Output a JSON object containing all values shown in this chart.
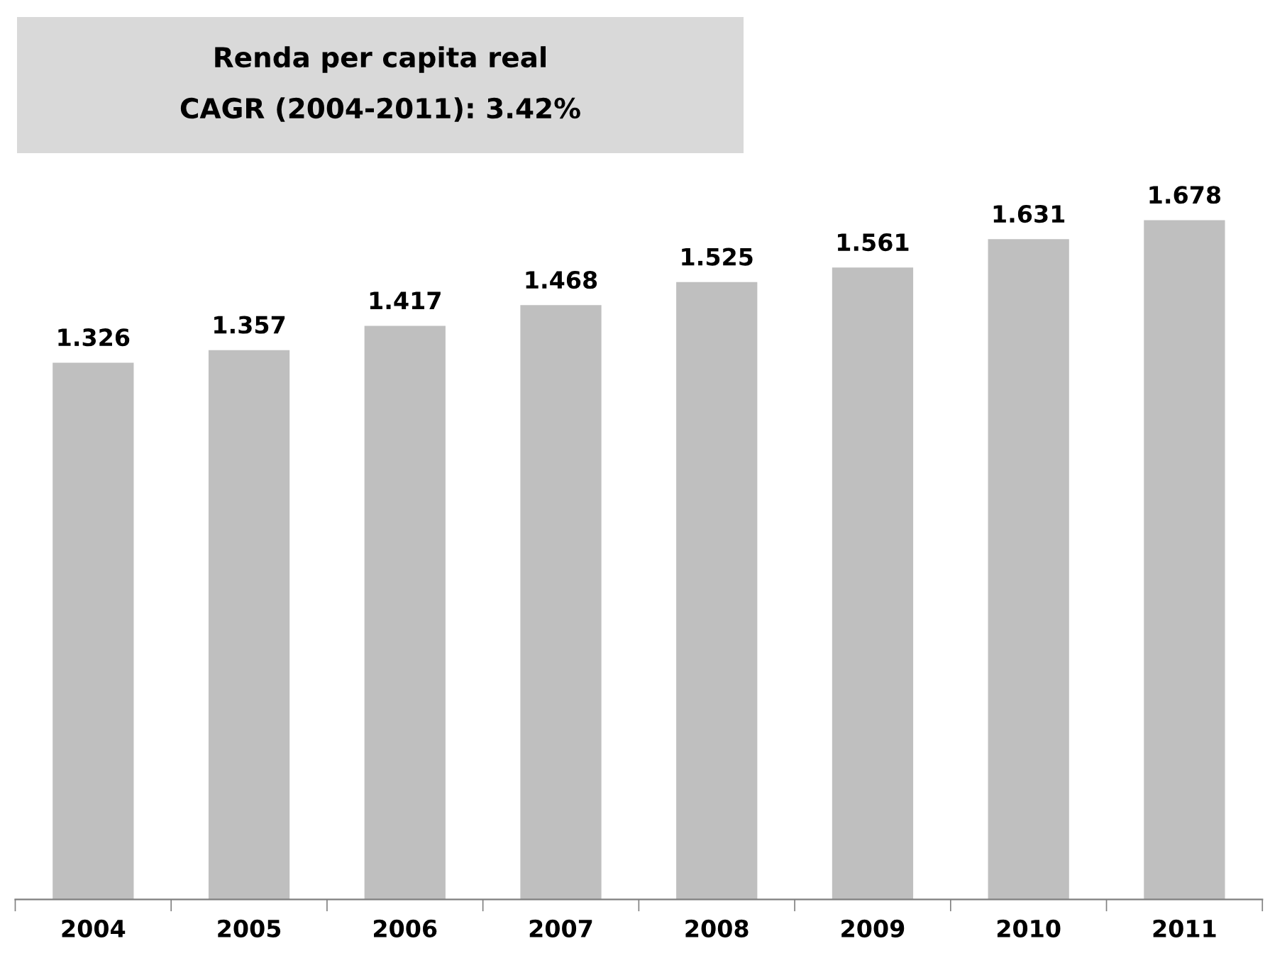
{
  "chart_data": {
    "type": "bar",
    "title": "Renda per capita real",
    "subtitle": "CAGR (2004-2011): 3.42%",
    "categories": [
      "2004",
      "2005",
      "2006",
      "2007",
      "2008",
      "2009",
      "2010",
      "2011"
    ],
    "values": [
      1.326,
      1.357,
      1.417,
      1.468,
      1.525,
      1.561,
      1.631,
      1.678
    ],
    "data_labels": true,
    "color": "#bfbfbf",
    "tick_labels": "x"
  }
}
